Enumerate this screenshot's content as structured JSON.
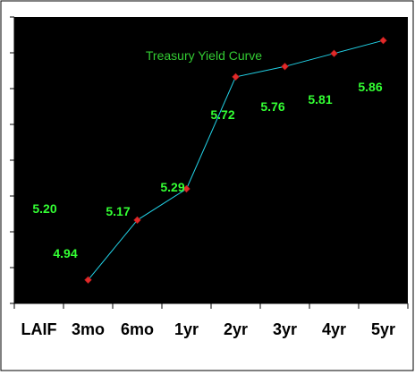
{
  "chart_data": {
    "type": "line",
    "title": "Treasury Yield Curve",
    "xlabel": "",
    "ylabel": "",
    "categories": [
      "LAIF",
      "3mo",
      "6mo",
      "1yr",
      "2yr",
      "3yr",
      "4yr",
      "5yr"
    ],
    "series": [
      {
        "values": [
          null,
          4.94,
          5.17,
          5.29,
          5.72,
          5.76,
          5.81,
          5.86
        ]
      }
    ],
    "point_labels": [
      "5.20",
      "4.94",
      "5.17",
      "5.29",
      "5.72",
      "5.76",
      "5.81",
      "5.86"
    ],
    "ylim": [
      4.85,
      5.95
    ],
    "y_ticks": 9,
    "grid": false,
    "colors": {
      "plot_background": "#000000",
      "outer_background": "#ffffff",
      "line": "#22d3e8",
      "marker": "#e02a2a",
      "labels": "#33ff33",
      "title": "#33cc33",
      "axis_text": "#000000"
    }
  }
}
